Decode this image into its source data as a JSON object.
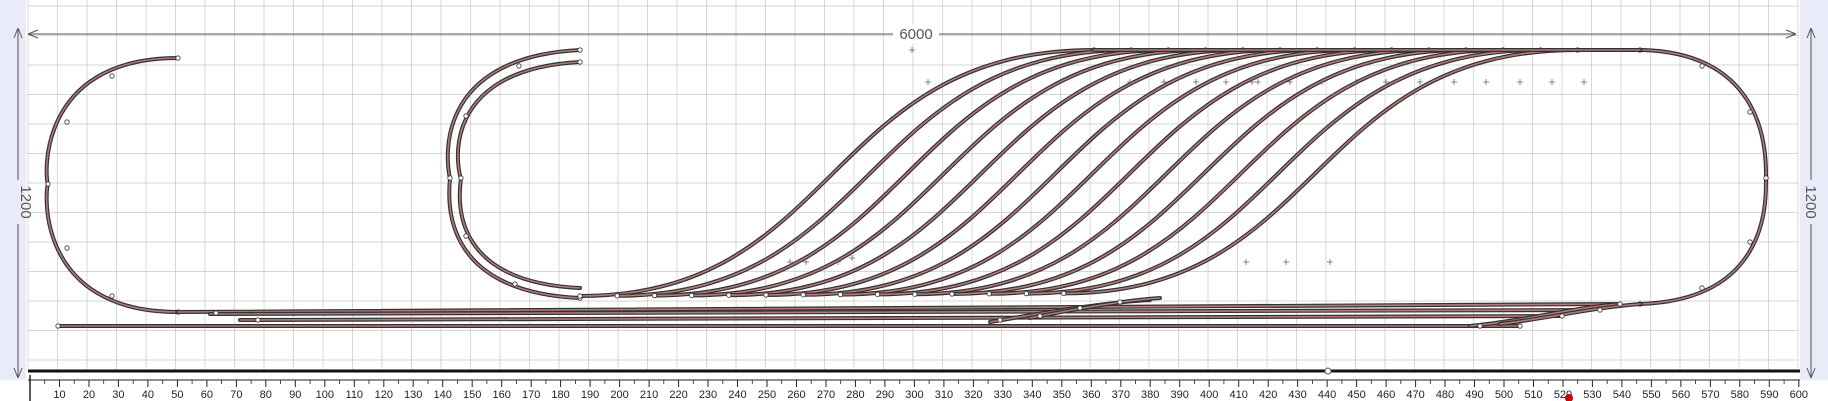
{
  "dimensions": {
    "width_label": "6000",
    "height_label": "1200"
  },
  "ruler": {
    "ticks": [
      "10",
      "20",
      "30",
      "40",
      "50",
      "60",
      "70",
      "80",
      "90",
      "100",
      "110",
      "120",
      "130",
      "140",
      "150",
      "160",
      "170",
      "180",
      "190",
      "200",
      "210",
      "220",
      "230",
      "240",
      "250",
      "260",
      "270",
      "280",
      "290",
      "300",
      "310",
      "320",
      "330",
      "340",
      "350",
      "360",
      "370",
      "380",
      "390",
      "400",
      "410",
      "420",
      "430",
      "440",
      "450",
      "460",
      "470",
      "480",
      "490",
      "500",
      "510",
      "520",
      "530",
      "540",
      "550",
      "560",
      "570",
      "580",
      "590",
      "600"
    ],
    "marker_color": "#cc0000"
  },
  "colors": {
    "background": "#ffffff",
    "grid": "#c8c8c8",
    "side_panel": "#e9ecf8",
    "track_outer": "#333333",
    "track_inner": "#b07a7a",
    "dimension_line": "#555555",
    "ruler_base": "#111111"
  },
  "track_plan": {
    "yard_sidings": 14,
    "loops": [
      "left-return-loop",
      "inner-return-loop",
      "right-return-loop"
    ]
  }
}
